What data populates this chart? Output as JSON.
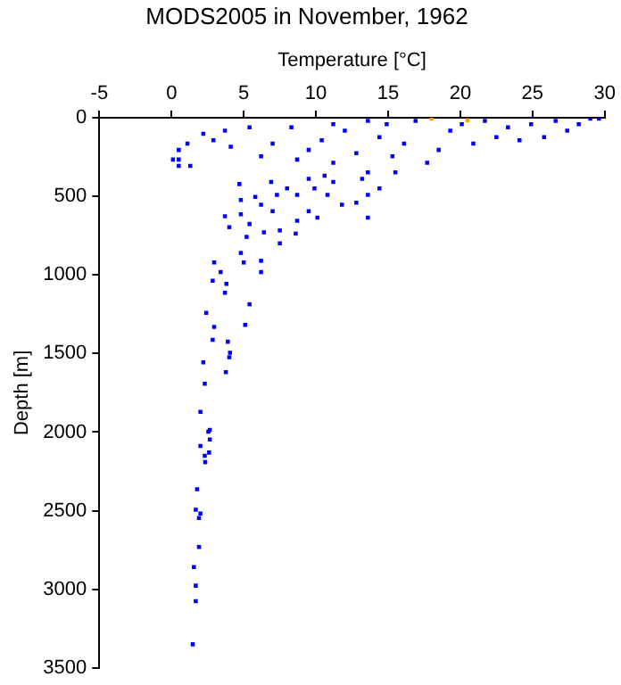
{
  "chart_data": {
    "type": "scatter",
    "title": "MODS2005 in November, 1962",
    "xlabel": "Temperature [°C]",
    "ylabel": "Depth [m]",
    "xlim": [
      -5,
      30
    ],
    "xticks": [
      -5,
      0,
      5,
      10,
      15,
      20,
      25,
      30
    ],
    "ylim": [
      3500,
      0
    ],
    "yticks": [
      0,
      500,
      1000,
      1500,
      2000,
      2500,
      3000,
      3500
    ],
    "grid": false,
    "legend": false,
    "marker": "square",
    "series": [
      {
        "color": "#0000ff",
        "x": [
          1.47,
          1.68,
          1.68,
          1.55,
          1.9,
          2.0,
          1.68,
          1.9,
          1.77,
          2.33,
          2.3,
          2.6,
          2.0,
          2.65,
          2.55,
          2.65,
          2.0,
          2.3,
          2.2,
          3.76,
          4.05,
          4.0,
          3.9,
          2.85,
          2.95,
          5.1,
          2.4,
          5.4,
          3.7,
          3.8,
          2.85,
          2.95,
          3.4,
          5.0,
          4.8,
          5.2,
          5.4,
          6.2,
          6.2,
          7.5,
          6.4,
          3.7,
          4.0,
          4.8,
          4.8,
          5.8,
          4.7,
          6.2,
          7.0,
          7.5,
          8.6,
          8.7,
          9.5,
          7.3,
          8.0,
          8.7,
          10.1,
          6.9,
          9.9,
          10.8,
          11.2,
          11.8,
          12.8,
          13.6,
          14.4,
          15.5,
          13.2,
          9.5,
          10.6,
          0.1,
          0.5,
          1.3,
          0.5,
          1.1,
          2.2,
          2.9,
          3.7,
          4.1,
          5.4,
          6.2,
          7.0,
          8.3,
          8.7,
          9.5,
          10.4,
          11.2,
          12.0,
          12.8,
          13.6,
          14.4,
          15.3,
          16.1,
          16.9,
          17.7,
          18.5,
          19.3,
          20.1,
          20.9,
          21.7,
          22.5,
          23.3,
          24.1,
          24.9,
          25.8,
          26.6,
          27.4,
          28.2,
          29.0,
          29.6,
          14.9,
          11.2,
          13.6,
          0.5,
          13.6
        ],
        "values": [
          3350,
          3075,
          2977,
          2858,
          2731,
          2518,
          2494,
          2547,
          2363,
          2191,
          2150,
          2130,
          2088,
          2047,
          1998,
          1986,
          1871,
          1692,
          1556,
          1618,
          1495,
          1524,
          1425,
          1413,
          1331,
          1318,
          1241,
          1187,
          1114,
          1057,
          1037,
          921,
          982,
          921,
          860,
          758,
          676,
          982,
          910,
          799,
          729,
          627,
          696,
          614,
          524,
          504,
          422,
          553,
          594,
          717,
          737,
          655,
          594,
          491,
          450,
          491,
          635,
          409,
          450,
          491,
          409,
          553,
          541,
          491,
          450,
          348,
          389,
          389,
          369,
          266,
          307,
          307,
          205,
          164,
          102,
          143,
          82,
          184,
          61,
          246,
          164,
          61,
          266,
          205,
          143,
          287,
          82,
          225,
          20,
          123,
          246,
          164,
          20,
          287,
          205,
          82,
          41,
          164,
          20,
          123,
          61,
          143,
          41,
          123,
          20,
          82,
          41,
          5,
          5,
          41,
          41,
          348,
          266,
          635
        ]
      },
      {
        "color": "#ff9900",
        "x": [
          18.0,
          20.5
        ],
        "values": [
          5,
          15
        ]
      }
    ]
  }
}
